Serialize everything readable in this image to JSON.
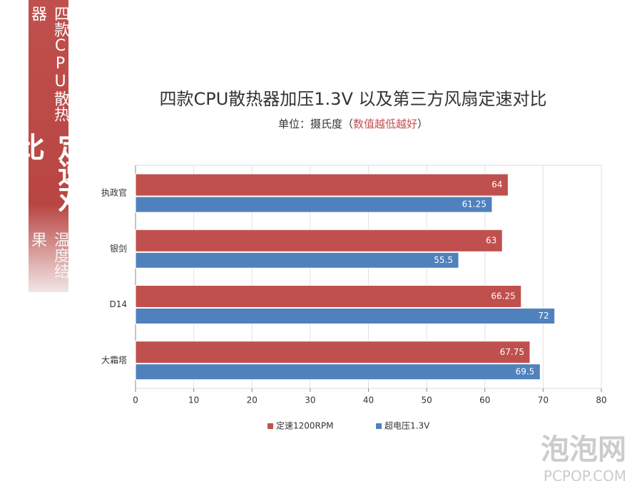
{
  "banner": {
    "line1": "四款CPU散热器",
    "line2": "定速对比",
    "line3": "温度结果"
  },
  "watermark": {
    "name": "泡泡网",
    "site": "PCPOP.COM"
  },
  "chart_data": {
    "type": "hbar",
    "title": "四款CPU散热器加压1.3V 以及第三方风扇定速对比",
    "subtitle": {
      "prefix": "单位：摄氏度（",
      "highlight": "数值越低越好",
      "suffix": "）"
    },
    "categories": [
      "执政官",
      "银剑",
      "D14",
      "大霜塔"
    ],
    "series": [
      {
        "name": "定速1200RPM",
        "color": "#c0504d",
        "values": [
          64,
          63,
          66.25,
          67.75
        ]
      },
      {
        "name": "超电压1.3V",
        "color": "#4f81bd",
        "values": [
          61.25,
          55.5,
          72,
          69.5
        ]
      }
    ],
    "xlim": [
      0,
      80
    ],
    "xticks": [
      0,
      10,
      20,
      30,
      40,
      50,
      60,
      70,
      80
    ],
    "grid": true
  }
}
